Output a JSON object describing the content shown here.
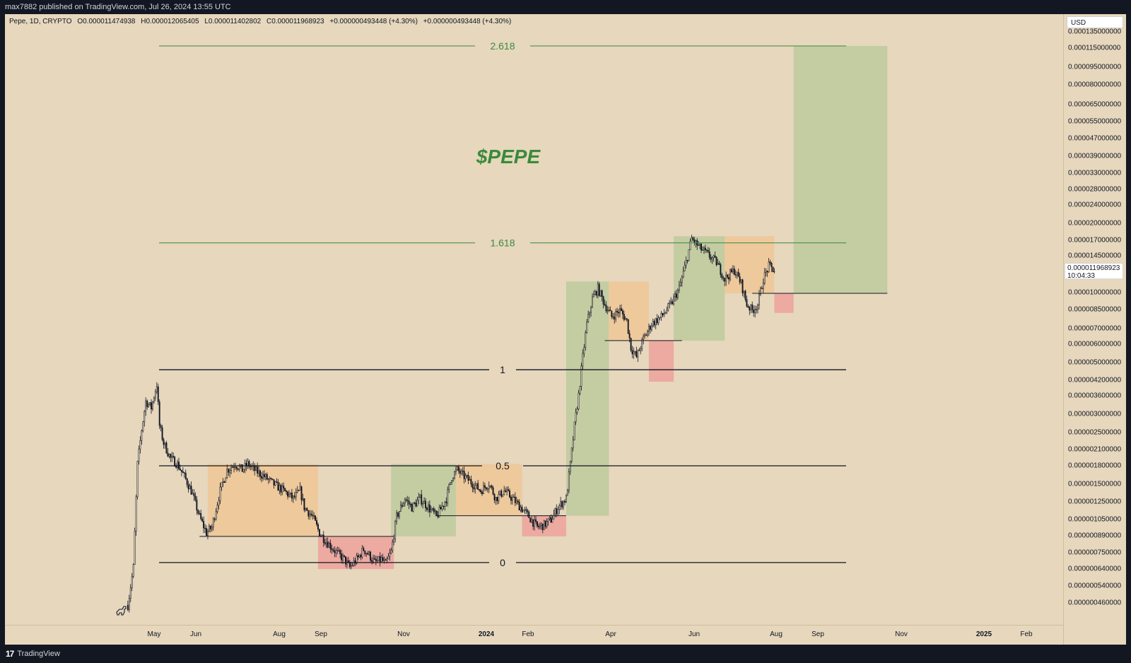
{
  "header": {
    "published": "max7882 published on TradingView.com, Jul 26, 2024 13:55 UTC"
  },
  "footer": {
    "brand": "TradingView",
    "logo_glyph": "17"
  },
  "legend": {
    "symbol": "Pepe, 1D, CRYPTO",
    "open": "O0.000011474938",
    "high": "H0.000012065405",
    "low": "L0.000011402802",
    "close": "C0.000011968923",
    "change": "+0.000000493448 (+4.30%)",
    "change2": "+0.000000493448 (+4.30%)"
  },
  "price_axis": {
    "currency": "USD",
    "current_price": "0.000011968923",
    "countdown": "10:04:33",
    "ticks": [
      "0.000135000000",
      "0.000115000000",
      "0.000095000000",
      "0.000080000000",
      "0.000065000000",
      "0.000055000000",
      "0.000047000000",
      "0.000039000000",
      "0.000033000000",
      "0.000028000000",
      "0.000024000000",
      "0.000020000000",
      "0.000017000000",
      "0.000014500000",
      "0.000010000000",
      "0.000008500000",
      "0.000007000000",
      "0.000006000000",
      "0.000005000000",
      "0.000004200000",
      "0.000003600000",
      "0.000003000000",
      "0.000002500000",
      "0.000002100000",
      "0.000001800000",
      "0.000001500000",
      "0.000001250000",
      "0.000001050000",
      "0.000000890000",
      "0.000000750000",
      "0.000000640000",
      "0.000000540000",
      "0.000000460000"
    ]
  },
  "time_axis": {
    "ticks": [
      {
        "label": "May",
        "bold": false
      },
      {
        "label": "Jun",
        "bold": false
      },
      {
        "label": "Aug",
        "bold": false
      },
      {
        "label": "Sep",
        "bold": false
      },
      {
        "label": "Nov",
        "bold": false
      },
      {
        "label": "2024",
        "bold": true
      },
      {
        "label": "Feb",
        "bold": false
      },
      {
        "label": "Apr",
        "bold": false
      },
      {
        "label": "Jun",
        "bold": false
      },
      {
        "label": "Aug",
        "bold": false
      },
      {
        "label": "Sep",
        "bold": false
      },
      {
        "label": "Nov",
        "bold": false
      },
      {
        "label": "2025",
        "bold": true
      },
      {
        "label": "Feb",
        "bold": false
      }
    ]
  },
  "annotation": {
    "title": "$PEPE",
    "title_color": "#3a8a3a"
  },
  "colors": {
    "background": "#e6d7bd",
    "candle": "#131722",
    "fib_green": "#3d8a3d",
    "fib_black": "#131722",
    "box_green": "#b8c89a",
    "box_orange": "#f0c594",
    "box_red": "#ee9f98"
  },
  "chart_data": {
    "type": "candlestick",
    "symbol": "Pepe, 1D, CRYPTO",
    "y_scale": "log",
    "y_range": [
      4.1e-07,
      0.000145
    ],
    "x_range": [
      "2023-04-15",
      "2025-02-28"
    ],
    "fib_levels": [
      {
        "label": "0",
        "price": 6.3e-07
      },
      {
        "label": "0.5",
        "price": 1.67e-06
      },
      {
        "label": "1",
        "price": 4.4e-06
      },
      {
        "label": "1.618",
        "price": 1.58e-05
      },
      {
        "label": "2.618",
        "price": 0.000115
      }
    ],
    "zones": [
      {
        "kind": "orange",
        "x0": "2023-06-11",
        "x1": "2023-08-30",
        "y0": 8.2e-07,
        "y1": 1.7e-06
      },
      {
        "kind": "red",
        "x0": "2023-08-30",
        "x1": "2023-10-24",
        "y0": 5.9e-07,
        "y1": 8.2e-07
      },
      {
        "kind": "green",
        "x0": "2023-10-22",
        "x1": "2023-12-08",
        "y0": 8.2e-07,
        "y1": 1.7e-06
      },
      {
        "kind": "orange",
        "x0": "2023-12-08",
        "x1": "2024-01-25",
        "y0": 1.01e-06,
        "y1": 1.7e-06
      },
      {
        "kind": "red",
        "x0": "2024-01-25",
        "x1": "2024-02-26",
        "y0": 8.2e-07,
        "y1": 1.01e-06
      },
      {
        "kind": "green",
        "x0": "2024-02-26",
        "x1": "2024-03-28",
        "y0": 1.01e-06,
        "y1": 1.07e-05
      },
      {
        "kind": "orange",
        "x0": "2024-03-28",
        "x1": "2024-04-26",
        "y0": 5.9e-06,
        "y1": 1.07e-05
      },
      {
        "kind": "red",
        "x0": "2024-04-26",
        "x1": "2024-05-14",
        "y0": 3.9e-06,
        "y1": 5.9e-06
      },
      {
        "kind": "green",
        "x0": "2024-05-14",
        "x1": "2024-06-20",
        "y0": 5.9e-06,
        "y1": 1.69e-05
      },
      {
        "kind": "orange",
        "x0": "2024-06-20",
        "x1": "2024-07-26",
        "y0": 9.5e-06,
        "y1": 1.69e-05
      },
      {
        "kind": "red",
        "x0": "2024-07-26",
        "x1": "2024-08-09",
        "y0": 7.8e-06,
        "y1": 9.5e-06
      },
      {
        "kind": "green",
        "x0": "2024-08-09",
        "x1": "2024-10-16",
        "y0": 9.5e-06,
        "y1": 0.000115
      }
    ],
    "support_lines": [
      {
        "x0": "2023-06-05",
        "x1": "2023-10-24",
        "price": 8.2e-07
      },
      {
        "x0": "2023-11-23",
        "x1": "2024-02-26",
        "price": 1.01e-06
      },
      {
        "x0": "2024-03-25",
        "x1": "2024-05-20",
        "price": 5.9e-06
      },
      {
        "x0": "2024-07-10",
        "x1": "2024-10-16",
        "price": 9.5e-06
      }
    ],
    "price_path": [
      [
        "2023-04-14",
        4.1e-07
      ],
      [
        "2023-04-18",
        6e-07
      ],
      [
        "2023-04-21",
        1.7e-06
      ],
      [
        "2023-04-24",
        2.4e-06
      ],
      [
        "2023-04-27",
        3.2e-06
      ],
      [
        "2023-05-01",
        3e-06
      ],
      [
        "2023-05-05",
        3.8e-06
      ],
      [
        "2023-05-07",
        2.5e-06
      ],
      [
        "2023-05-10",
        2.1e-06
      ],
      [
        "2023-05-15",
        1.8e-06
      ],
      [
        "2023-05-20",
        1.7e-06
      ],
      [
        "2023-05-25",
        1.5e-06
      ],
      [
        "2023-05-30",
        1.3e-06
      ],
      [
        "2023-06-05",
        1e-06
      ],
      [
        "2023-06-10",
        8.5e-07
      ],
      [
        "2023-06-14",
        9e-07
      ],
      [
        "2023-06-20",
        1.3e-06
      ],
      [
        "2023-06-25",
        1.6e-06
      ],
      [
        "2023-07-01",
        1.7e-06
      ],
      [
        "2023-07-06",
        1.6e-06
      ],
      [
        "2023-07-10",
        1.7e-06
      ],
      [
        "2023-07-15",
        1.6e-06
      ],
      [
        "2023-07-22",
        1.5e-06
      ],
      [
        "2023-07-28",
        1.4e-06
      ],
      [
        "2023-08-05",
        1.3e-06
      ],
      [
        "2023-08-12",
        1.2e-06
      ],
      [
        "2023-08-17",
        1.3e-06
      ],
      [
        "2023-08-20",
        1.1e-06
      ],
      [
        "2023-08-26",
        1e-06
      ],
      [
        "2023-08-31",
        8.5e-07
      ],
      [
        "2023-09-05",
        7.8e-07
      ],
      [
        "2023-09-12",
        7e-07
      ],
      [
        "2023-09-18",
        6.5e-07
      ],
      [
        "2023-09-22",
        6e-07
      ],
      [
        "2023-09-28",
        6.6e-07
      ],
      [
        "2023-10-02",
        7.2e-07
      ],
      [
        "2023-10-06",
        6.8e-07
      ],
      [
        "2023-10-10",
        6.3e-07
      ],
      [
        "2023-10-15",
        6.5e-07
      ],
      [
        "2023-10-18",
        6.2e-07
      ],
      [
        "2023-10-22",
        7e-07
      ],
      [
        "2023-10-26",
        1e-06
      ],
      [
        "2023-11-01",
        1.2e-06
      ],
      [
        "2023-11-06",
        1.1e-06
      ],
      [
        "2023-11-12",
        1.2e-06
      ],
      [
        "2023-11-18",
        1.1e-06
      ],
      [
        "2023-11-24",
        1e-06
      ],
      [
        "2023-12-01",
        1.2e-06
      ],
      [
        "2023-12-05",
        1.5e-06
      ],
      [
        "2023-12-09",
        1.6e-06
      ],
      [
        "2023-12-14",
        1.5e-06
      ],
      [
        "2023-12-20",
        1.4e-06
      ],
      [
        "2023-12-26",
        1.3e-06
      ],
      [
        "2024-01-01",
        1.4e-06
      ],
      [
        "2024-01-06",
        1.2e-06
      ],
      [
        "2024-01-12",
        1.3e-06
      ],
      [
        "2024-01-18",
        1.2e-06
      ],
      [
        "2024-01-24",
        1.1e-06
      ],
      [
        "2024-01-30",
        1e-06
      ],
      [
        "2024-02-05",
        9e-07
      ],
      [
        "2024-02-10",
        9.2e-07
      ],
      [
        "2024-02-15",
        9.7e-07
      ],
      [
        "2024-02-20",
        1.1e-06
      ],
      [
        "2024-02-26",
        1.2e-06
      ],
      [
        "2024-02-29",
        1.7e-06
      ],
      [
        "2024-03-03",
        2.5e-06
      ],
      [
        "2024-03-06",
        3.4e-06
      ],
      [
        "2024-03-09",
        5e-06
      ],
      [
        "2024-03-12",
        7e-06
      ],
      [
        "2024-03-16",
        9e-06
      ],
      [
        "2024-03-20",
        1e-05
      ],
      [
        "2024-03-25",
        8.5e-06
      ],
      [
        "2024-03-30",
        7.5e-06
      ],
      [
        "2024-04-05",
        8e-06
      ],
      [
        "2024-04-10",
        7.2e-06
      ],
      [
        "2024-04-13",
        5.5e-06
      ],
      [
        "2024-04-17",
        5e-06
      ],
      [
        "2024-04-22",
        6e-06
      ],
      [
        "2024-04-28",
        7e-06
      ],
      [
        "2024-05-05",
        7.5e-06
      ],
      [
        "2024-05-12",
        8.5e-06
      ],
      [
        "2024-05-18",
        1e-05
      ],
      [
        "2024-05-23",
        1.3e-05
      ],
      [
        "2024-05-27",
        1.65e-05
      ],
      [
        "2024-06-02",
        1.5e-05
      ],
      [
        "2024-06-08",
        1.4e-05
      ],
      [
        "2024-06-14",
        1.3e-05
      ],
      [
        "2024-06-20",
        1.1e-05
      ],
      [
        "2024-06-27",
        1.2e-05
      ],
      [
        "2024-07-02",
        1.05e-05
      ],
      [
        "2024-07-06",
        8.5e-06
      ],
      [
        "2024-07-10",
        8e-06
      ],
      [
        "2024-07-14",
        8.5e-06
      ],
      [
        "2024-07-18",
        1.1e-05
      ],
      [
        "2024-07-22",
        1.25e-05
      ],
      [
        "2024-07-26",
        1.19686e-05
      ]
    ]
  }
}
